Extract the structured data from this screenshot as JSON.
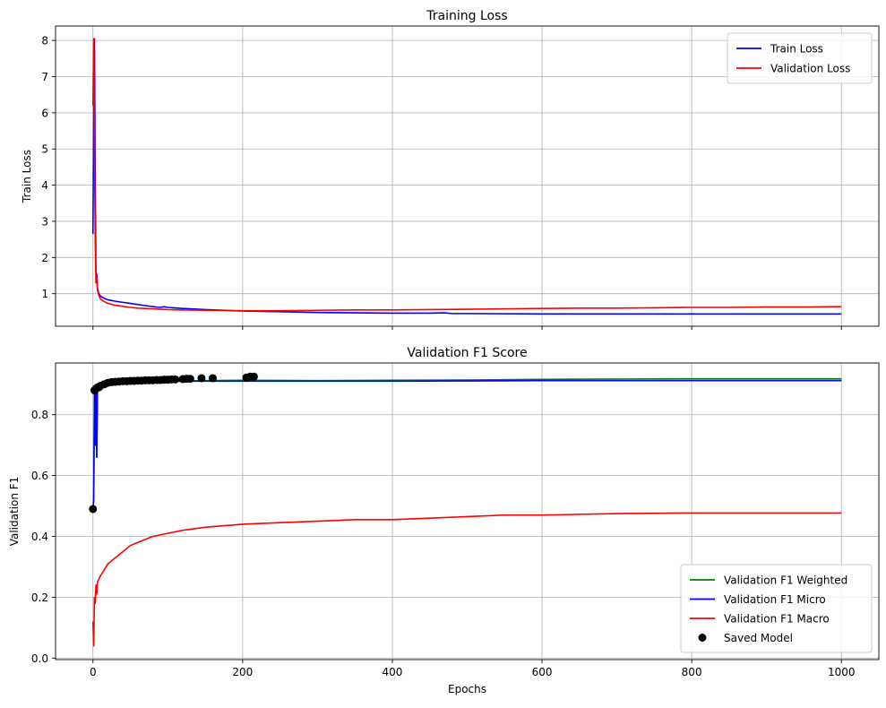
{
  "chart_data": [
    {
      "type": "line",
      "title": "Training Loss",
      "xlabel": "",
      "ylabel": "Train Loss",
      "xlim": [
        -50,
        1050
      ],
      "ylim": [
        0.1,
        8.4
      ],
      "xticks": [
        0,
        200,
        400,
        600,
        800,
        1000
      ],
      "xtick_labels_visible": false,
      "yticks": [
        1,
        2,
        3,
        4,
        5,
        6,
        7,
        8
      ],
      "grid": true,
      "legend_position": "top-right",
      "series": [
        {
          "name": "Train Loss",
          "color": "#0000ff",
          "x": [
            0,
            1,
            2,
            3,
            4,
            5,
            6,
            8,
            10,
            15,
            20,
            30,
            40,
            50,
            60,
            70,
            80,
            90,
            95,
            100,
            120,
            150,
            200,
            250,
            300,
            350,
            400,
            450,
            470,
            480,
            500,
            600,
            700,
            800,
            900,
            1000
          ],
          "y": [
            2.65,
            6.0,
            8.05,
            4.2,
            1.55,
            1.55,
            1.15,
            1.0,
            0.93,
            0.87,
            0.83,
            0.79,
            0.76,
            0.73,
            0.7,
            0.67,
            0.64,
            0.62,
            0.64,
            0.62,
            0.59,
            0.56,
            0.52,
            0.5,
            0.48,
            0.47,
            0.46,
            0.46,
            0.47,
            0.45,
            0.45,
            0.44,
            0.44,
            0.44,
            0.44,
            0.44
          ]
        },
        {
          "name": "Validation Loss",
          "color": "#ff0000",
          "x": [
            0,
            1,
            2,
            3,
            4,
            5,
            6,
            8,
            10,
            15,
            20,
            30,
            40,
            50,
            60,
            70,
            80,
            90,
            100,
            120,
            150,
            200,
            250,
            300,
            350,
            400,
            450,
            500,
            550,
            600,
            650,
            700,
            750,
            800,
            850,
            900,
            950,
            1000
          ],
          "y": [
            6.2,
            8.05,
            5.0,
            2.5,
            1.3,
            1.45,
            1.1,
            0.95,
            0.85,
            0.78,
            0.73,
            0.68,
            0.65,
            0.62,
            0.6,
            0.59,
            0.58,
            0.57,
            0.56,
            0.55,
            0.54,
            0.53,
            0.53,
            0.54,
            0.55,
            0.55,
            0.56,
            0.57,
            0.58,
            0.59,
            0.6,
            0.6,
            0.61,
            0.62,
            0.62,
            0.63,
            0.63,
            0.64
          ]
        }
      ]
    },
    {
      "type": "line",
      "title": "Validation F1 Score",
      "xlabel": "Epochs",
      "ylabel": "Validation F1",
      "xlim": [
        -50,
        1050
      ],
      "ylim": [
        -0.005,
        0.97
      ],
      "xticks": [
        0,
        200,
        400,
        600,
        800,
        1000
      ],
      "yticks": [
        0.0,
        0.2,
        0.4,
        0.6,
        0.8
      ],
      "ytick_labels": [
        "0.0",
        "0.2",
        "0.4",
        "0.6",
        "0.8"
      ],
      "grid": true,
      "legend_position": "bottom-right",
      "series": [
        {
          "name": "Validation F1 Weighted",
          "color": "#008000",
          "x": [
            0,
            1,
            2,
            3,
            4,
            5,
            6,
            8,
            10,
            20,
            40,
            60,
            100,
            150,
            200,
            300,
            400,
            500,
            600,
            700,
            800,
            900,
            1000
          ],
          "y": [
            0.49,
            0.52,
            0.88,
            0.7,
            0.89,
            0.66,
            0.88,
            0.89,
            0.89,
            0.9,
            0.905,
            0.907,
            0.91,
            0.912,
            0.913,
            0.912,
            0.913,
            0.914,
            0.916,
            0.917,
            0.918,
            0.918,
            0.918
          ]
        },
        {
          "name": "Validation F1 Micro",
          "color": "#0000ff",
          "x": [
            0,
            1,
            2,
            3,
            4,
            5,
            6,
            8,
            10,
            20,
            40,
            60,
            100,
            150,
            200,
            300,
            400,
            500,
            600,
            700,
            800,
            900,
            1000
          ],
          "y": [
            0.49,
            0.52,
            0.88,
            0.7,
            0.89,
            0.66,
            0.88,
            0.89,
            0.89,
            0.9,
            0.905,
            0.907,
            0.91,
            0.91,
            0.91,
            0.91,
            0.91,
            0.911,
            0.912,
            0.912,
            0.912,
            0.912,
            0.912
          ]
        },
        {
          "name": "Validation F1 Macro",
          "color": "#ff0000",
          "x": [
            0,
            1,
            2,
            3,
            4,
            5,
            6,
            8,
            10,
            15,
            20,
            30,
            40,
            50,
            60,
            80,
            100,
            120,
            150,
            200,
            250,
            300,
            350,
            400,
            450,
            500,
            550,
            600,
            700,
            800,
            900,
            1000
          ],
          "y": [
            0.12,
            0.04,
            0.2,
            0.18,
            0.24,
            0.21,
            0.25,
            0.26,
            0.27,
            0.29,
            0.31,
            0.33,
            0.35,
            0.37,
            0.38,
            0.4,
            0.41,
            0.42,
            0.43,
            0.44,
            0.445,
            0.45,
            0.455,
            0.455,
            0.46,
            0.465,
            0.47,
            0.47,
            0.475,
            0.477,
            0.477,
            0.477
          ]
        },
        {
          "name": "Saved Model",
          "type": "scatter",
          "color": "#000000",
          "x": [
            0,
            2,
            4,
            6,
            8,
            10,
            15,
            20,
            25,
            30,
            35,
            40,
            45,
            50,
            55,
            60,
            65,
            70,
            75,
            80,
            85,
            90,
            95,
            100,
            105,
            110,
            120,
            125,
            130,
            145,
            160,
            205,
            210,
            215
          ],
          "y": [
            0.49,
            0.88,
            0.885,
            0.89,
            0.89,
            0.895,
            0.9,
            0.905,
            0.907,
            0.908,
            0.909,
            0.91,
            0.91,
            0.911,
            0.911,
            0.912,
            0.912,
            0.913,
            0.913,
            0.913,
            0.914,
            0.914,
            0.915,
            0.915,
            0.916,
            0.916,
            0.917,
            0.918,
            0.918,
            0.92,
            0.92,
            0.922,
            0.925,
            0.925
          ]
        }
      ]
    }
  ]
}
